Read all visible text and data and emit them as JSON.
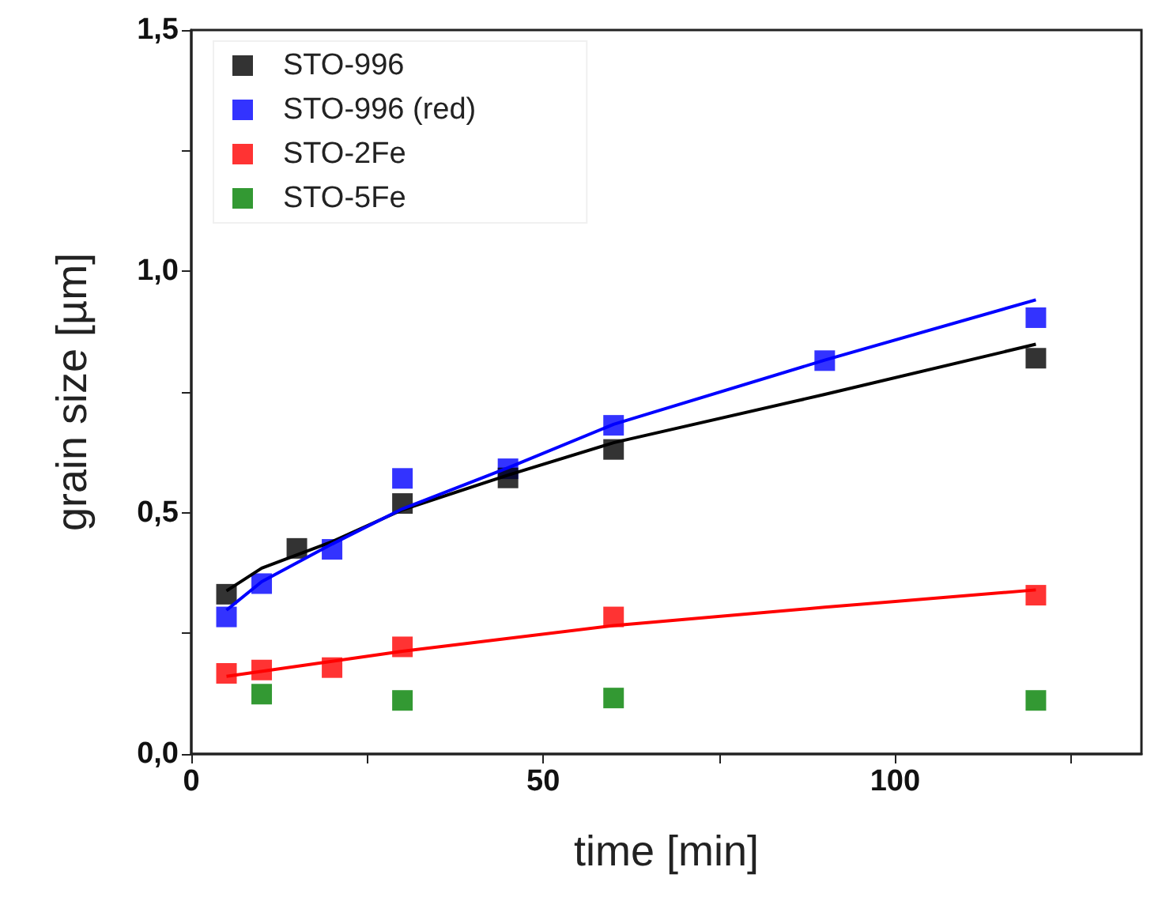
{
  "chart_data": {
    "type": "scatter",
    "xlabel": "time [min]",
    "ylabel": "grain size [µm]",
    "xlim": [
      0,
      135
    ],
    "ylim": [
      0,
      1.5
    ],
    "xticks": [
      0,
      {
        "value": 25,
        "label": null
      },
      50,
      {
        "value": 75,
        "label": null
      },
      100,
      {
        "value": 125,
        "label": null
      }
    ],
    "yticks": [
      {
        "value": 0,
        "label": "0,0"
      },
      {
        "value": 0.25,
        "label": null
      },
      {
        "value": 0.5,
        "label": "0,5"
      },
      {
        "value": 0.75,
        "label": null
      },
      {
        "value": 1,
        "label": "1,0"
      },
      {
        "value": 1.25,
        "label": null
      },
      {
        "value": 1.5,
        "label": "1,5"
      }
    ],
    "grid": false,
    "legend": "top left",
    "marker": "square",
    "series": [
      {
        "name": "STO-996",
        "color": "#000000",
        "x": [
          5,
          15,
          30,
          45,
          60,
          120
        ],
        "values": [
          0.331,
          0.426,
          0.519,
          0.572,
          0.631,
          0.82
        ]
      },
      {
        "name": "STO-996 (red)",
        "color": "#0000ff",
        "x": [
          5,
          10,
          20,
          30,
          45,
          60,
          90,
          120
        ],
        "values": [
          0.284,
          0.353,
          0.424,
          0.571,
          0.591,
          0.681,
          0.815,
          0.904
        ]
      },
      {
        "name": "STO-2Fe",
        "color": "#ff0000",
        "x": [
          5,
          10,
          20,
          30,
          60,
          120
        ],
        "values": [
          0.167,
          0.174,
          0.179,
          0.222,
          0.284,
          0.329
        ]
      },
      {
        "name": "STO-5Fe",
        "color": "#008000",
        "x": [
          10,
          30,
          60,
          120
        ],
        "values": [
          0.124,
          0.111,
          0.116,
          0.111
        ]
      },
      {
        "type": "line",
        "marker": "none",
        "color": "#000000",
        "x": [
          5,
          10,
          20,
          30,
          45,
          60,
          90,
          120
        ],
        "values": [
          0.338,
          0.385,
          0.44,
          0.506,
          0.578,
          0.645,
          0.745,
          0.849
        ]
      },
      {
        "type": "line",
        "marker": "none",
        "color": "#0000ff",
        "x": [
          5,
          10,
          20,
          30,
          45,
          60,
          90,
          120
        ],
        "values": [
          0.298,
          0.357,
          0.435,
          0.508,
          0.593,
          0.683,
          0.816,
          0.941
        ]
      },
      {
        "type": "line",
        "marker": "none",
        "color": "#ff0000",
        "x": [
          5,
          30,
          60,
          90,
          120
        ],
        "values": [
          0.161,
          0.213,
          0.266,
          0.304,
          0.34
        ]
      }
    ]
  }
}
